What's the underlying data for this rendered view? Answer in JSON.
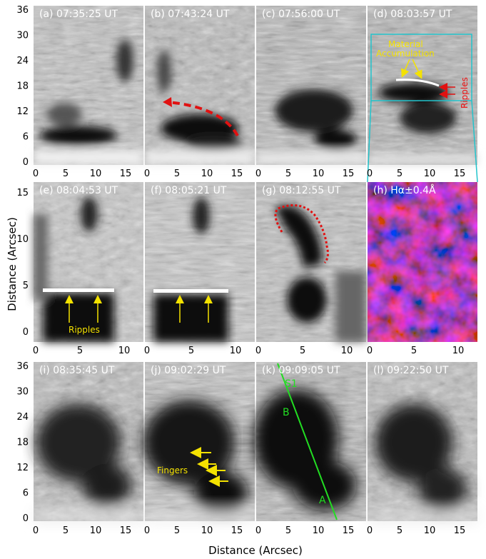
{
  "panels": [
    {
      "id": "a",
      "label": "(a) 07:35:25 UT"
    },
    {
      "id": "b",
      "label": "(b) 07:43:24 UT"
    },
    {
      "id": "c",
      "label": "(c) 07:56:00 UT"
    },
    {
      "id": "d",
      "label": "(d) 08:03:57 UT"
    },
    {
      "id": "e",
      "label": "(e) 08:04:53 UT"
    },
    {
      "id": "f",
      "label": "(f) 08:05:21 UT"
    },
    {
      "id": "g",
      "label": "(g) 08:12:55 UT"
    },
    {
      "id": "h",
      "label": "(h) Hα±0.4Å"
    },
    {
      "id": "i",
      "label": "(i) 08:35:45 UT"
    },
    {
      "id": "j",
      "label": "(j) 09:02:29 UT"
    },
    {
      "id": "k",
      "label": "(k) 09:09:05 UT"
    },
    {
      "id": "l",
      "label": "(l) 09:22:50 UT"
    }
  ],
  "axes": {
    "ylabel_middle": "Distance (Arcsec)",
    "xlabel_bottom": "Distance (Arcsec)",
    "row_top_yticks": [
      "36",
      "30",
      "24",
      "18",
      "12",
      "6",
      "0"
    ],
    "row_mid_yticks": [
      "15",
      "10",
      "5",
      "0"
    ],
    "row_bottom_yticks": [
      "36",
      "30",
      "24",
      "18",
      "12",
      "6",
      "0"
    ],
    "xticks_wide": [
      "0",
      "5",
      "10",
      "15"
    ],
    "xticks_zoom": [
      "0",
      "5",
      "10"
    ]
  },
  "annotations": {
    "material_accumulation": "Material\nAccumulation",
    "ripples_d": "Ripples",
    "ripples_e": "Ripples",
    "fingers": "Fingers",
    "s1": "S1",
    "point_b": "B",
    "point_a": "A"
  },
  "colors": {
    "annotation_yellow": "#f4e200",
    "annotation_red": "#e11111",
    "box_cyan": "#22c4cc",
    "slit_green": "#22dd22"
  }
}
